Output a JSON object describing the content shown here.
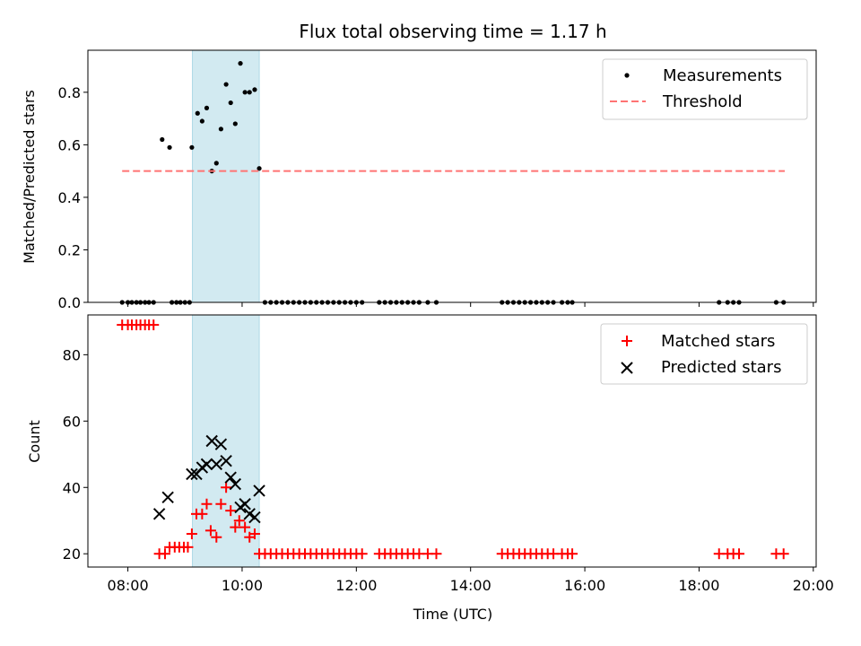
{
  "chart_data": [
    {
      "type": "scatter",
      "title": "Flux total observing time = 1.17 h",
      "xlabel": "",
      "ylabel": "Matched/Predicted stars",
      "xlim": [
        7.3,
        20.05
      ],
      "ylim": [
        0.0,
        0.96
      ],
      "yticks": [
        0.0,
        0.2,
        0.4,
        0.6,
        0.8
      ],
      "ytick_labels": [
        "0.0",
        "0.2",
        "0.4",
        "0.6",
        "0.8"
      ],
      "shaded_interval": {
        "x": [
          9.13,
          10.3
        ],
        "color": "#add8e6"
      },
      "legend_position": "top-right",
      "series": [
        {
          "name": "Measurements",
          "kind": "points",
          "color": "#000000",
          "points": [
            [
              7.9,
              0
            ],
            [
              8.0,
              0
            ],
            [
              8.07,
              0
            ],
            [
              8.15,
              0
            ],
            [
              8.22,
              0
            ],
            [
              8.3,
              0
            ],
            [
              8.37,
              0
            ],
            [
              8.45,
              0
            ],
            [
              8.6,
              0.62
            ],
            [
              8.73,
              0.59
            ],
            [
              8.77,
              0
            ],
            [
              8.85,
              0
            ],
            [
              8.92,
              0
            ],
            [
              9.0,
              0
            ],
            [
              9.08,
              0
            ],
            [
              9.12,
              0.59
            ],
            [
              9.22,
              0.72
            ],
            [
              9.3,
              0.69
            ],
            [
              9.38,
              0.74
            ],
            [
              9.47,
              0.5
            ],
            [
              9.55,
              0.53
            ],
            [
              9.63,
              0.66
            ],
            [
              9.72,
              0.83
            ],
            [
              9.8,
              0.76
            ],
            [
              9.88,
              0.68
            ],
            [
              9.97,
              0.91
            ],
            [
              10.05,
              0.8
            ],
            [
              10.13,
              0.8
            ],
            [
              10.22,
              0.81
            ],
            [
              10.3,
              0.51
            ],
            [
              10.4,
              0
            ],
            [
              10.5,
              0
            ],
            [
              10.6,
              0
            ],
            [
              10.7,
              0
            ],
            [
              10.8,
              0
            ],
            [
              10.9,
              0
            ],
            [
              11.0,
              0
            ],
            [
              11.1,
              0
            ],
            [
              11.2,
              0
            ],
            [
              11.3,
              0
            ],
            [
              11.4,
              0
            ],
            [
              11.5,
              0
            ],
            [
              11.6,
              0
            ],
            [
              11.7,
              0
            ],
            [
              11.8,
              0
            ],
            [
              11.9,
              0
            ],
            [
              12.0,
              0
            ],
            [
              12.1,
              0
            ],
            [
              12.4,
              0
            ],
            [
              12.5,
              0
            ],
            [
              12.6,
              0
            ],
            [
              12.7,
              0
            ],
            [
              12.8,
              0
            ],
            [
              12.9,
              0
            ],
            [
              13.0,
              0
            ],
            [
              13.1,
              0
            ],
            [
              13.25,
              0
            ],
            [
              13.4,
              0
            ],
            [
              14.55,
              0
            ],
            [
              14.65,
              0
            ],
            [
              14.75,
              0
            ],
            [
              14.85,
              0
            ],
            [
              14.95,
              0
            ],
            [
              15.05,
              0
            ],
            [
              15.15,
              0
            ],
            [
              15.25,
              0
            ],
            [
              15.35,
              0
            ],
            [
              15.45,
              0
            ],
            [
              15.6,
              0
            ],
            [
              15.7,
              0
            ],
            [
              15.78,
              0
            ],
            [
              18.35,
              0
            ],
            [
              18.5,
              0
            ],
            [
              18.6,
              0
            ],
            [
              18.7,
              0
            ],
            [
              19.35,
              0
            ],
            [
              19.48,
              0
            ]
          ]
        },
        {
          "name": "Threshold",
          "kind": "dashed-line",
          "color": "#ff7373",
          "points": [
            [
              7.9,
              0.5
            ],
            [
              19.5,
              0.5
            ]
          ]
        }
      ]
    },
    {
      "type": "scatter",
      "title": "",
      "xlabel": "Time (UTC)",
      "ylabel": "Count",
      "xlim": [
        7.3,
        20.05
      ],
      "ylim": [
        16,
        92
      ],
      "yticks": [
        20,
        40,
        60,
        80
      ],
      "ytick_labels": [
        "20",
        "40",
        "60",
        "80"
      ],
      "xticks": [
        8,
        10,
        12,
        14,
        16,
        18,
        20
      ],
      "xtick_labels": [
        "08:00",
        "10:00",
        "12:00",
        "14:00",
        "16:00",
        "18:00",
        "20:00"
      ],
      "shaded_interval": {
        "x": [
          9.13,
          10.3
        ],
        "color": "#add8e6"
      },
      "legend_position": "top-right",
      "series": [
        {
          "name": "Matched stars",
          "marker": "plus",
          "color": "#ff0000",
          "points": [
            [
              7.9,
              89
            ],
            [
              8.0,
              89
            ],
            [
              8.07,
              89
            ],
            [
              8.15,
              89
            ],
            [
              8.22,
              89
            ],
            [
              8.3,
              89
            ],
            [
              8.37,
              89
            ],
            [
              8.45,
              89
            ],
            [
              8.55,
              20
            ],
            [
              8.65,
              20
            ],
            [
              8.73,
              22
            ],
            [
              8.82,
              22
            ],
            [
              8.9,
              22
            ],
            [
              8.98,
              22
            ],
            [
              9.05,
              22
            ],
            [
              9.12,
              26
            ],
            [
              9.2,
              32
            ],
            [
              9.3,
              32
            ],
            [
              9.38,
              35
            ],
            [
              9.45,
              27
            ],
            [
              9.55,
              25
            ],
            [
              9.63,
              35
            ],
            [
              9.72,
              40
            ],
            [
              9.8,
              33
            ],
            [
              9.88,
              28
            ],
            [
              9.95,
              30
            ],
            [
              10.05,
              28
            ],
            [
              10.13,
              25
            ],
            [
              10.22,
              26
            ],
            [
              10.3,
              20
            ],
            [
              10.4,
              20
            ],
            [
              10.5,
              20
            ],
            [
              10.6,
              20
            ],
            [
              10.7,
              20
            ],
            [
              10.8,
              20
            ],
            [
              10.9,
              20
            ],
            [
              11.0,
              20
            ],
            [
              11.1,
              20
            ],
            [
              11.2,
              20
            ],
            [
              11.3,
              20
            ],
            [
              11.4,
              20
            ],
            [
              11.5,
              20
            ],
            [
              11.6,
              20
            ],
            [
              11.7,
              20
            ],
            [
              11.8,
              20
            ],
            [
              11.9,
              20
            ],
            [
              12.0,
              20
            ],
            [
              12.1,
              20
            ],
            [
              12.4,
              20
            ],
            [
              12.5,
              20
            ],
            [
              12.6,
              20
            ],
            [
              12.7,
              20
            ],
            [
              12.8,
              20
            ],
            [
              12.9,
              20
            ],
            [
              13.0,
              20
            ],
            [
              13.1,
              20
            ],
            [
              13.25,
              20
            ],
            [
              13.4,
              20
            ],
            [
              14.55,
              20
            ],
            [
              14.65,
              20
            ],
            [
              14.75,
              20
            ],
            [
              14.85,
              20
            ],
            [
              14.95,
              20
            ],
            [
              15.05,
              20
            ],
            [
              15.15,
              20
            ],
            [
              15.25,
              20
            ],
            [
              15.35,
              20
            ],
            [
              15.45,
              20
            ],
            [
              15.6,
              20
            ],
            [
              15.7,
              20
            ],
            [
              15.78,
              20
            ],
            [
              18.35,
              20
            ],
            [
              18.5,
              20
            ],
            [
              18.6,
              20
            ],
            [
              18.7,
              20
            ],
            [
              19.35,
              20
            ],
            [
              19.48,
              20
            ]
          ]
        },
        {
          "name": "Predicted stars",
          "marker": "x",
          "color": "#000000",
          "points": [
            [
              8.55,
              32
            ],
            [
              8.7,
              37
            ],
            [
              9.12,
              44
            ],
            [
              9.2,
              44
            ],
            [
              9.3,
              46
            ],
            [
              9.38,
              47
            ],
            [
              9.47,
              54
            ],
            [
              9.55,
              47
            ],
            [
              9.63,
              53
            ],
            [
              9.72,
              48
            ],
            [
              9.8,
              43
            ],
            [
              9.88,
              41
            ],
            [
              9.97,
              34
            ],
            [
              10.05,
              35
            ],
            [
              10.13,
              32
            ],
            [
              10.22,
              31
            ],
            [
              10.3,
              39
            ]
          ]
        }
      ]
    }
  ]
}
